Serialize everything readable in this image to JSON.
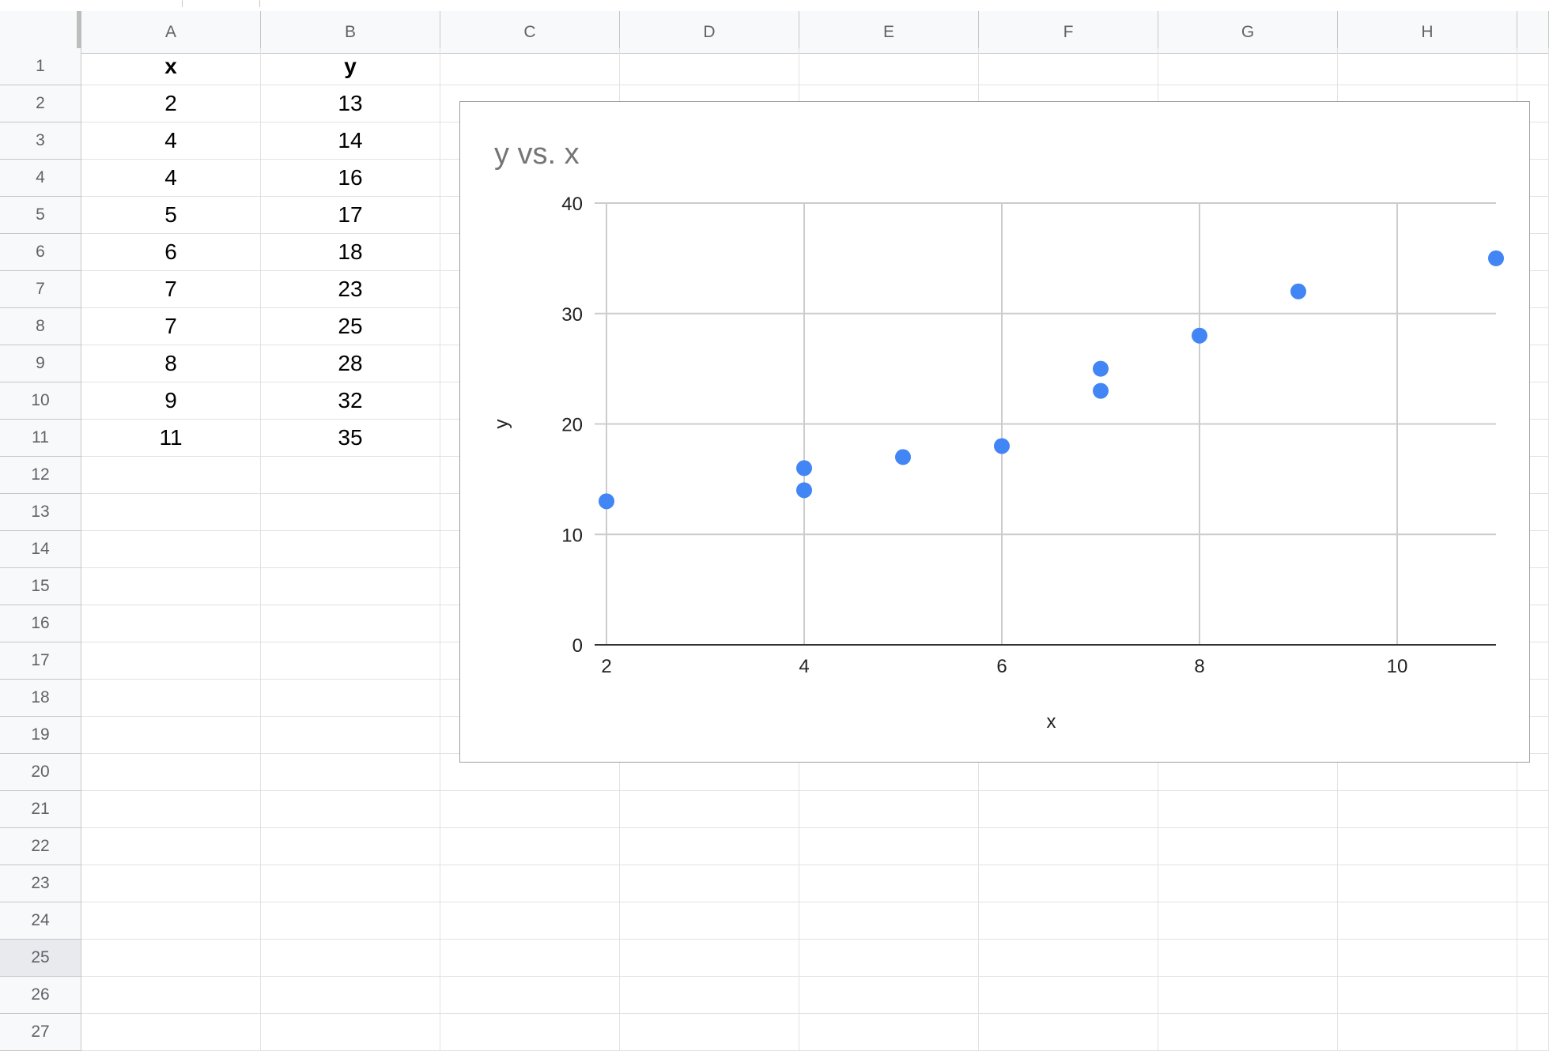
{
  "sheet": {
    "columns": [
      "A",
      "B",
      "C",
      "D",
      "E",
      "F",
      "G",
      "H"
    ],
    "rows": [
      [
        "x",
        "y"
      ],
      [
        "2",
        "13"
      ],
      [
        "4",
        "14"
      ],
      [
        "4",
        "16"
      ],
      [
        "5",
        "17"
      ],
      [
        "6",
        "18"
      ],
      [
        "7",
        "23"
      ],
      [
        "7",
        "25"
      ],
      [
        "8",
        "28"
      ],
      [
        "9",
        "32"
      ],
      [
        "11",
        "35"
      ]
    ],
    "row_numbers": [
      "1",
      "2",
      "3",
      "4",
      "5",
      "6",
      "7",
      "8",
      "9",
      "10",
      "11",
      "12",
      "13",
      "14",
      "15",
      "16",
      "17",
      "18",
      "19",
      "20",
      "21",
      "22",
      "23",
      "24",
      "25",
      "26",
      "27"
    ],
    "selected_row": "25"
  },
  "chart_data": {
    "type": "scatter",
    "title": "y vs. x",
    "xlabel": "x",
    "ylabel": "y",
    "series": [
      {
        "color": "#4285f4",
        "points": [
          [
            2,
            13
          ],
          [
            4,
            14
          ],
          [
            4,
            16
          ],
          [
            5,
            17
          ],
          [
            6,
            18
          ],
          [
            7,
            23
          ],
          [
            7,
            25
          ],
          [
            8,
            28
          ],
          [
            9,
            32
          ],
          [
            11,
            35
          ]
        ]
      }
    ],
    "xlim": [
      2,
      11
    ],
    "ylim": [
      0,
      40
    ],
    "xticks": [
      "2",
      "4",
      "6",
      "8",
      "10"
    ],
    "yticks": [
      "0",
      "10",
      "20",
      "30",
      "40"
    ],
    "grid": true,
    "legend": "none"
  }
}
